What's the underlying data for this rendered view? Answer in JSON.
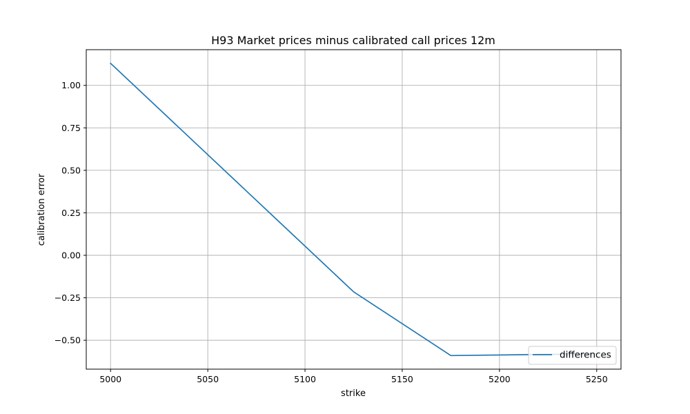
{
  "chart_data": {
    "type": "line",
    "title": "H93 Market prices minus calibrated call prices 12m",
    "xlabel": "strike",
    "ylabel": "calibration error",
    "xlim": [
      4987.5,
      5262.5
    ],
    "ylim": [
      -0.67,
      1.21
    ],
    "xticks": [
      5000,
      5050,
      5100,
      5150,
      5200,
      5250
    ],
    "yticks": [
      -0.5,
      -0.25,
      0.0,
      0.25,
      0.5,
      0.75,
      1.0
    ],
    "ytick_labels": [
      "−0.50",
      "−0.25",
      "0.00",
      "0.25",
      "0.50",
      "0.75",
      "1.00"
    ],
    "grid": true,
    "legend_position": "lower right",
    "series": [
      {
        "name": "differences",
        "color": "#1f77b4",
        "x": [
          5000,
          5125,
          5175,
          5250
        ],
        "y": [
          1.13,
          -0.215,
          -0.59,
          -0.58
        ]
      }
    ]
  }
}
